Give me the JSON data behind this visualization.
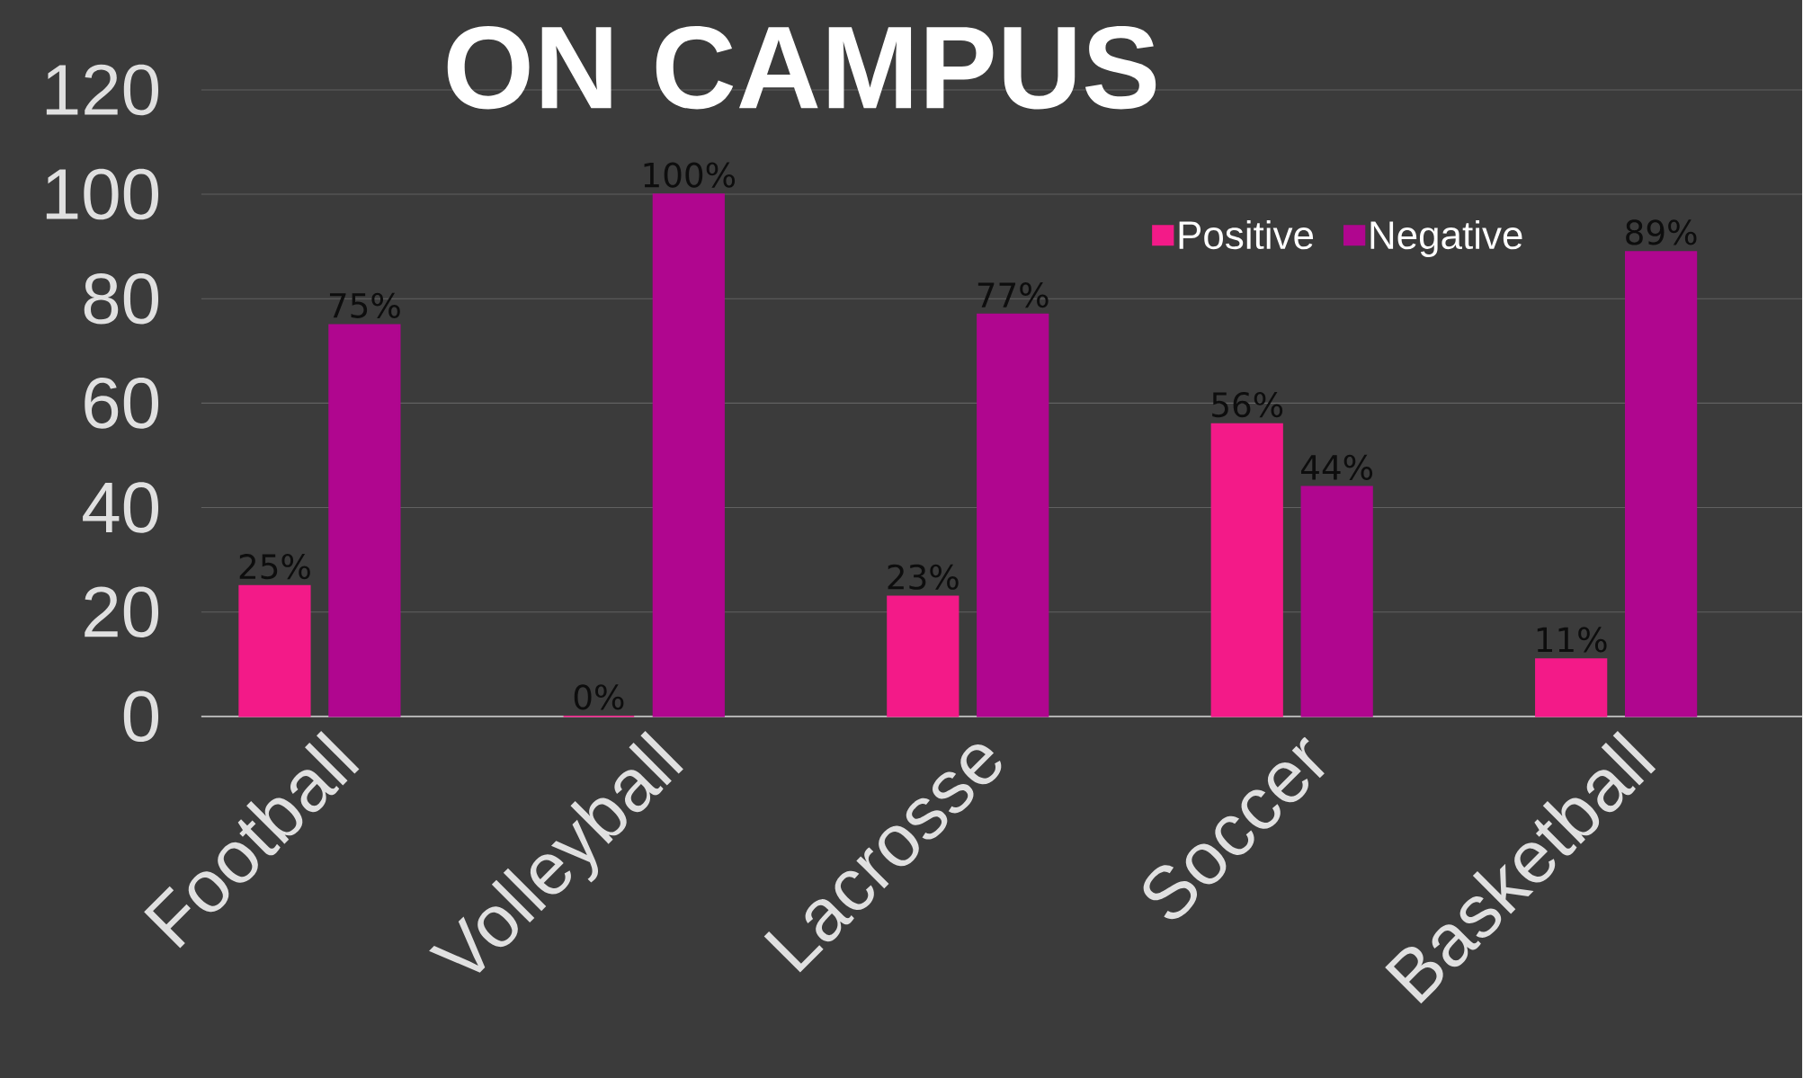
{
  "chart_data": {
    "type": "bar",
    "title": "ON CAMPUS",
    "categories": [
      "Football",
      "Volleyball",
      "Lacrosse",
      "Soccer",
      "Basketball"
    ],
    "series": [
      {
        "name": "Positive",
        "color": "#f31a88",
        "values": [
          25,
          0,
          23,
          56,
          11
        ],
        "value_labels": [
          "25%",
          "0%",
          "23%",
          "56%",
          "11%"
        ]
      },
      {
        "name": "Negative",
        "color": "#b0068f",
        "values": [
          75,
          100,
          77,
          44,
          89
        ],
        "value_labels": [
          "75%",
          "100%",
          "77%",
          "44%",
          "89%"
        ]
      }
    ],
    "ylim": [
      0,
      120
    ],
    "yticks": [
      0,
      20,
      40,
      60,
      80,
      100,
      120
    ],
    "grid": "y",
    "legend": "top right"
  }
}
